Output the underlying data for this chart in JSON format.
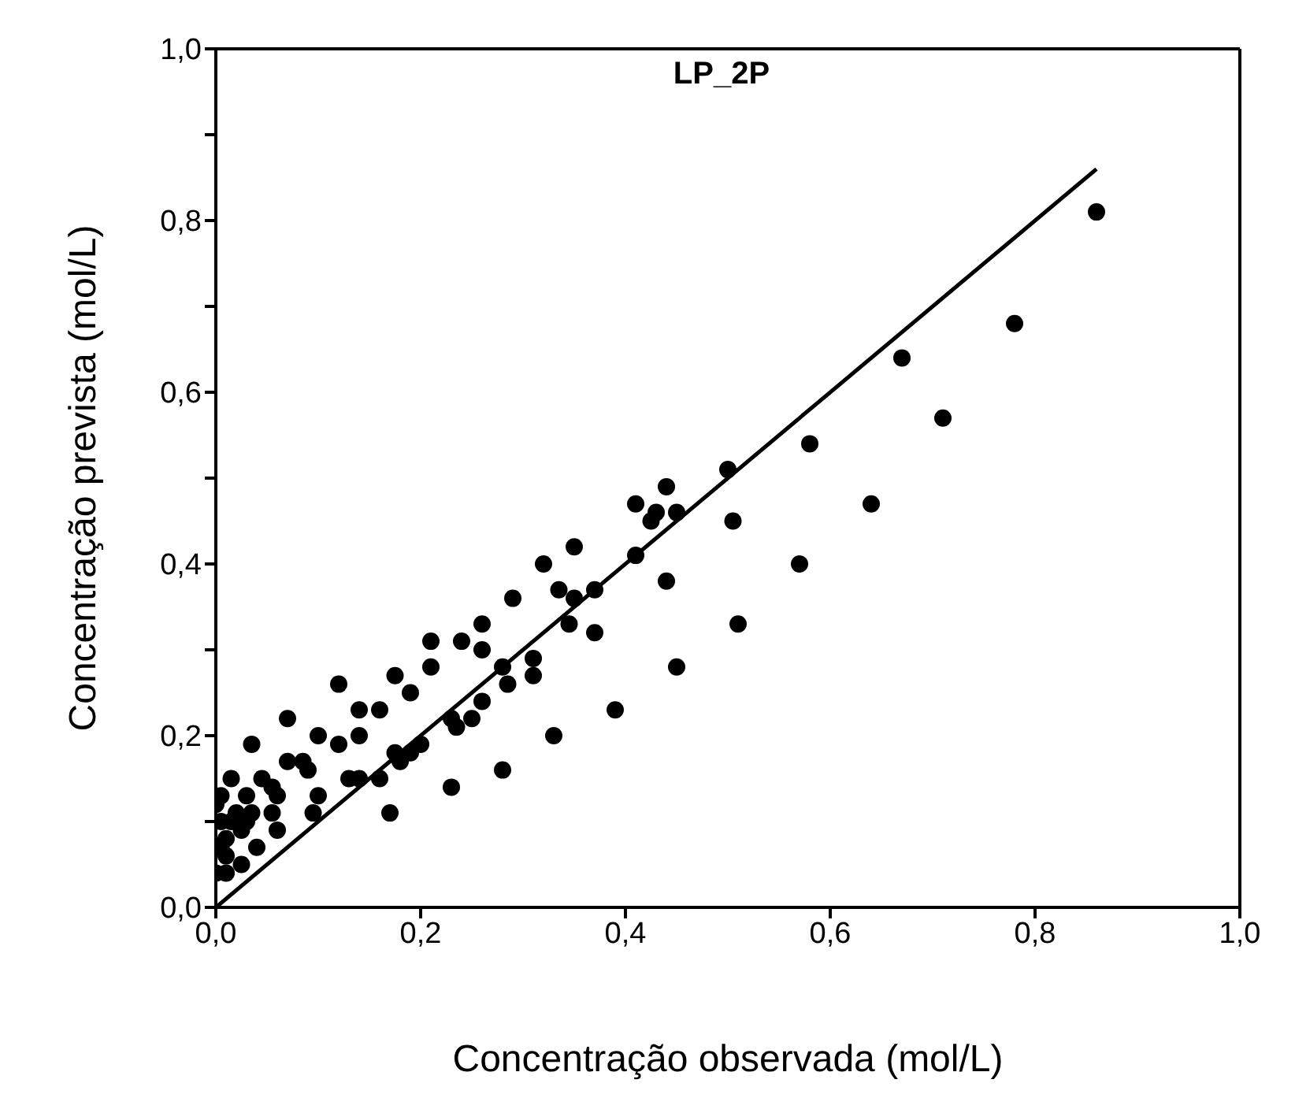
{
  "chart_data": {
    "type": "scatter",
    "title": "LP_2P",
    "xlabel": "Concentração observada (mol/L)",
    "ylabel": "Concentração prevista (mol/L)",
    "xlim": [
      0,
      1
    ],
    "ylim": [
      0,
      1
    ],
    "xticks": [
      {
        "value": 0,
        "label": "0,0"
      },
      {
        "value": 0.2,
        "label": "0,2"
      },
      {
        "value": 0.4,
        "label": "0,4"
      },
      {
        "value": 0.6,
        "label": "0,6"
      },
      {
        "value": 0.8,
        "label": "0,8"
      },
      {
        "value": 1,
        "label": "1,0"
      }
    ],
    "yticks": [
      {
        "value": 0,
        "label": "0,0"
      },
      {
        "value": 0.1,
        "label": null
      },
      {
        "value": 0.2,
        "label": "0,2"
      },
      {
        "value": 0.3,
        "label": null
      },
      {
        "value": 0.4,
        "label": "0,4"
      },
      {
        "value": 0.5,
        "label": null
      },
      {
        "value": 0.6,
        "label": "0,6"
      },
      {
        "value": 0.7,
        "label": null
      },
      {
        "value": 0.8,
        "label": "0,8"
      },
      {
        "value": 0.9,
        "label": null
      },
      {
        "value": 1,
        "label": "1,0"
      }
    ],
    "marker": "circle",
    "series": [
      {
        "color": "#000000",
        "x": [
          0.86,
          0.78,
          0.67,
          0.71,
          0.64,
          0.58,
          0.57,
          0.51,
          0.5,
          0.505,
          0.45,
          0.45,
          0.44,
          0.43,
          0.425,
          0.41,
          0.41,
          0.44,
          0.39,
          0.37,
          0.37,
          0.35,
          0.35,
          0.345,
          0.335,
          0.32,
          0.33,
          0.31,
          0.31,
          0.29,
          0.28,
          0.285,
          0.28,
          0.26,
          0.26,
          0.26,
          0.25,
          0.24,
          0.235,
          0.23,
          0.23,
          0.21,
          0.21,
          0.2,
          0.19,
          0.19,
          0.18,
          0.175,
          0.175,
          0.17,
          0.16,
          0.16,
          0.14,
          0.14,
          0.14,
          0.13,
          0.12,
          0.12,
          0.1,
          0.1,
          0.095,
          0.09,
          0.085,
          0.07,
          0.07,
          0.06,
          0.06,
          0.055,
          0.055,
          0.045,
          0.04,
          0.035,
          0.03,
          0.03,
          0.025,
          0.025,
          0.02,
          0.015,
          0.015,
          0.01,
          0.01,
          0.005,
          0.005,
          0.005,
          0.0,
          0.0,
          0.035,
          0.01
        ],
        "values": [
          0.81,
          0.68,
          0.64,
          0.57,
          0.47,
          0.54,
          0.4,
          0.33,
          0.51,
          0.45,
          0.28,
          0.46,
          0.49,
          0.46,
          0.45,
          0.47,
          0.41,
          0.38,
          0.23,
          0.37,
          0.32,
          0.42,
          0.36,
          0.33,
          0.37,
          0.4,
          0.2,
          0.29,
          0.27,
          0.36,
          0.28,
          0.26,
          0.16,
          0.33,
          0.3,
          0.24,
          0.22,
          0.31,
          0.21,
          0.22,
          0.14,
          0.31,
          0.28,
          0.19,
          0.25,
          0.18,
          0.17,
          0.18,
          0.27,
          0.11,
          0.23,
          0.15,
          0.2,
          0.23,
          0.15,
          0.15,
          0.26,
          0.19,
          0.2,
          0.13,
          0.11,
          0.16,
          0.17,
          0.22,
          0.17,
          0.13,
          0.09,
          0.14,
          0.11,
          0.15,
          0.07,
          0.19,
          0.13,
          0.1,
          0.09,
          0.05,
          0.11,
          0.15,
          0.1,
          0.08,
          0.04,
          0.13,
          0.1,
          0.07,
          0.12,
          0.04,
          0.11,
          0.06
        ]
      },
      {
        "type": "line",
        "color": "#000000",
        "x": [
          0,
          0.86
        ],
        "values": [
          0,
          0.86
        ],
        "marker": "none",
        "line_style": "solid"
      }
    ]
  }
}
